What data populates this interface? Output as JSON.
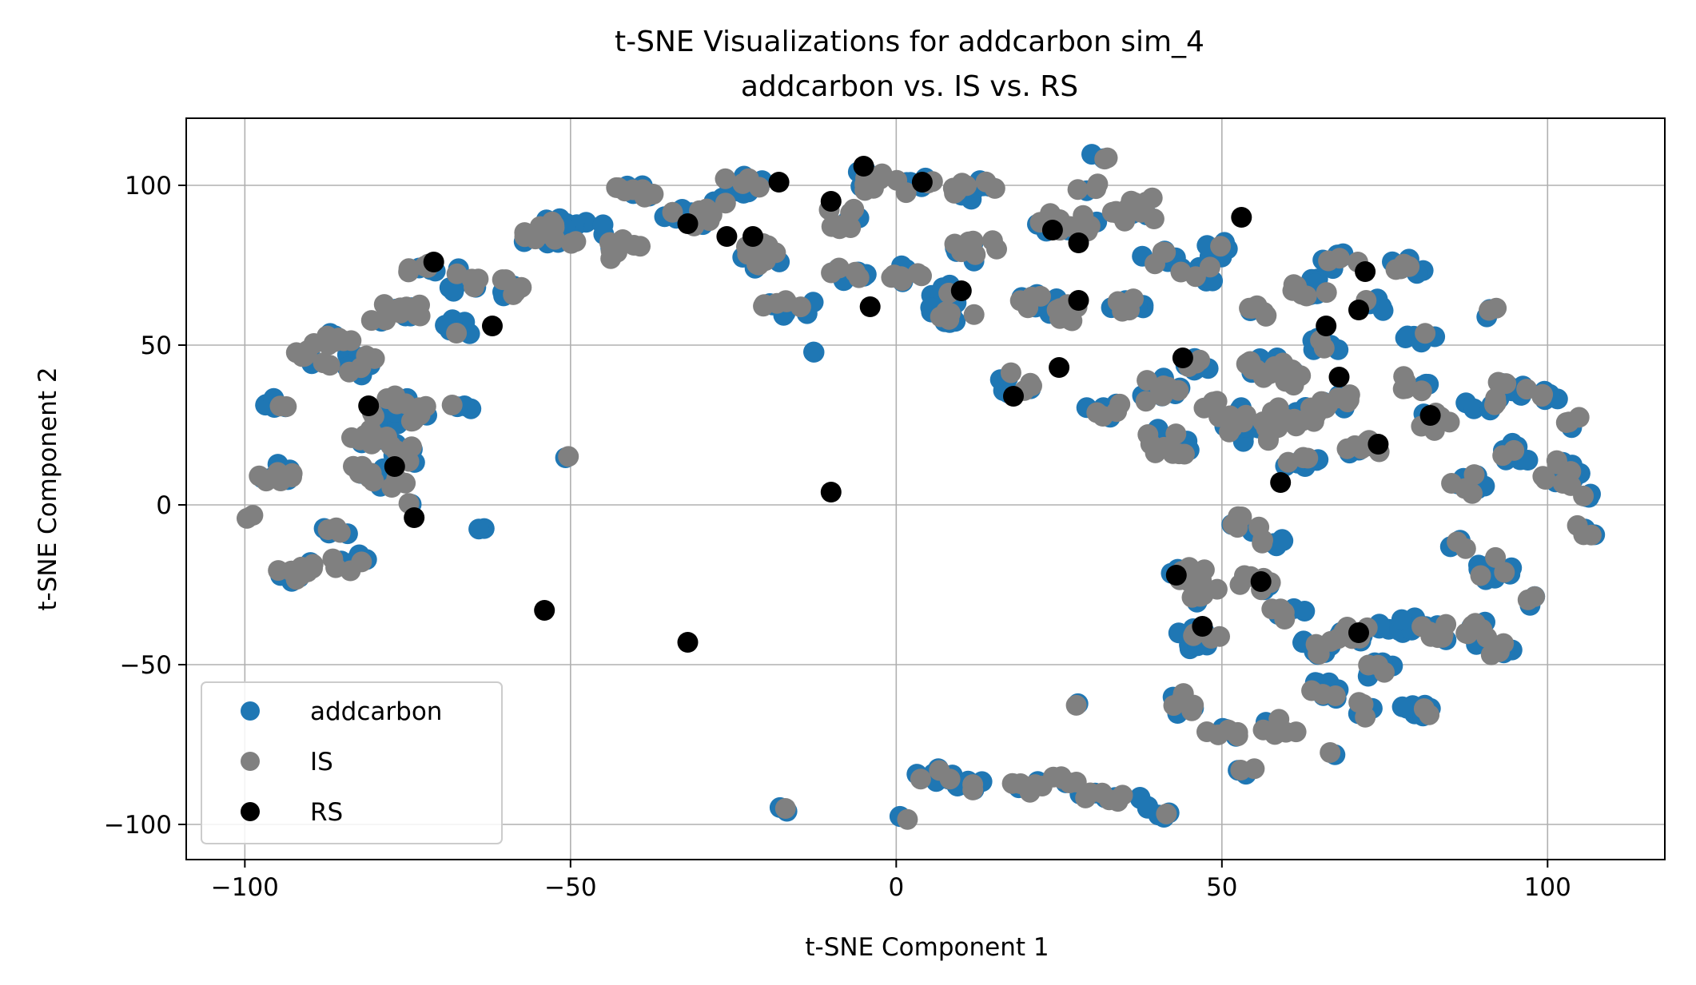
{
  "chart_data": {
    "type": "scatter",
    "title": "t-SNE Visualizations for addcarbon sim_4",
    "subtitle": "addcarbon vs. IS vs. RS",
    "xlabel": "t-SNE Component 1",
    "ylabel": "t-SNE Component 2",
    "xlim": [
      -109,
      118
    ],
    "ylim": [
      -111,
      121
    ],
    "xticks": [
      -100,
      -50,
      0,
      50,
      100
    ],
    "xtick_labels": [
      "−100",
      "−50",
      "0",
      "50",
      "100"
    ],
    "yticks": [
      -100,
      -50,
      0,
      50,
      100
    ],
    "ytick_labels": [
      "−100",
      "−50",
      "0",
      "50",
      "100"
    ],
    "grid": true,
    "legend_position": "lower-left",
    "colors": {
      "addcarbon": "#1f77b4",
      "IS": "#808080",
      "RS": "#000000"
    },
    "clusters": [
      [
        -96,
        10,
        4,
        3,
        14
      ],
      [
        -95,
        32,
        3,
        2,
        10
      ],
      [
        -93,
        -22,
        3,
        3,
        8
      ],
      [
        -90,
        46,
        3,
        3,
        8
      ],
      [
        -87,
        52,
        4,
        2,
        10
      ],
      [
        -85,
        -8,
        3,
        2,
        6
      ],
      [
        -84,
        -18,
        3,
        3,
        8
      ],
      [
        -83,
        44,
        4,
        4,
        14
      ],
      [
        -81,
        22,
        3,
        3,
        10
      ],
      [
        -81,
        10,
        4,
        3,
        10
      ],
      [
        -78,
        8,
        3,
        3,
        8
      ],
      [
        -77,
        30,
        4,
        5,
        16
      ],
      [
        -76,
        16,
        3,
        4,
        10
      ],
      [
        -77,
        60,
        5,
        4,
        18
      ],
      [
        -72,
        28,
        3,
        3,
        8
      ],
      [
        -73,
        74,
        3,
        2,
        8
      ],
      [
        -67,
        70,
        3,
        4,
        10
      ],
      [
        -67,
        56,
        3,
        3,
        8
      ],
      [
        -67,
        30,
        2,
        2,
        4
      ],
      [
        -59,
        68,
        3,
        3,
        10
      ],
      [
        -57,
        84,
        2,
        2,
        4
      ],
      [
        -50,
        86,
        6,
        6,
        24
      ],
      [
        -42,
        80,
        3,
        4,
        10
      ],
      [
        -40,
        98,
        4,
        2,
        12
      ],
      [
        -32,
        90,
        4,
        3,
        12
      ],
      [
        -28,
        94,
        2,
        3,
        6
      ],
      [
        -24,
        100,
        4,
        3,
        12
      ],
      [
        -21,
        78,
        4,
        4,
        14
      ],
      [
        -16,
        62,
        5,
        3,
        14
      ],
      [
        -7,
        72,
        4,
        3,
        10
      ],
      [
        -8,
        90,
        3,
        4,
        10
      ],
      [
        -4,
        102,
        3,
        4,
        10
      ],
      [
        3,
        101,
        3,
        4,
        10
      ],
      [
        1,
        72,
        3,
        3,
        10
      ],
      [
        8,
        66,
        3,
        3,
        8
      ],
      [
        12,
        98,
        4,
        4,
        14
      ],
      [
        12,
        80,
        4,
        4,
        12
      ],
      [
        8,
        60,
        4,
        3,
        12
      ],
      [
        18,
        38,
        3,
        4,
        10
      ],
      [
        22,
        64,
        3,
        3,
        10
      ],
      [
        26,
        88,
        5,
        4,
        18
      ],
      [
        29,
        100,
        2,
        2,
        4
      ],
      [
        31,
        109,
        2,
        1,
        4
      ],
      [
        26,
        60,
        3,
        3,
        10
      ],
      [
        32,
        30,
        3,
        3,
        8
      ],
      [
        36,
        62,
        3,
        3,
        10
      ],
      [
        37,
        92,
        4,
        5,
        14
      ],
      [
        40,
        36,
        4,
        4,
        14
      ],
      [
        40,
        78,
        3,
        3,
        8
      ],
      [
        42,
        20,
        4,
        6,
        16
      ],
      [
        46,
        72,
        3,
        4,
        10
      ],
      [
        50,
        80,
        3,
        3,
        8
      ],
      [
        46,
        44,
        3,
        2,
        8
      ],
      [
        50,
        30,
        3,
        4,
        10
      ],
      [
        53,
        -6,
        3,
        3,
        8
      ],
      [
        54,
        24,
        5,
        5,
        20
      ],
      [
        56,
        44,
        4,
        3,
        12
      ],
      [
        57,
        61,
        3,
        2,
        8
      ],
      [
        58,
        -12,
        2,
        3,
        6
      ],
      [
        61,
        28,
        4,
        4,
        14
      ],
      [
        60,
        40,
        4,
        3,
        10
      ],
      [
        62,
        14,
        3,
        3,
        10
      ],
      [
        64,
        68,
        4,
        3,
        12
      ],
      [
        66,
        50,
        3,
        3,
        8
      ],
      [
        68,
        32,
        4,
        3,
        10
      ],
      [
        68,
        76,
        3,
        3,
        10
      ],
      [
        72,
        18,
        3,
        3,
        10
      ],
      [
        73,
        62,
        2,
        3,
        6
      ],
      [
        78,
        74,
        3,
        3,
        8
      ],
      [
        79,
        38,
        3,
        3,
        8
      ],
      [
        81,
        52,
        3,
        2,
        6
      ],
      [
        82,
        26,
        3,
        3,
        8
      ],
      [
        90,
        32,
        3,
        3,
        10
      ],
      [
        91,
        60,
        2,
        2,
        4
      ],
      [
        94,
        36,
        3,
        3,
        10
      ],
      [
        96,
        16,
        3,
        4,
        10
      ],
      [
        100,
        34,
        2,
        2,
        6
      ],
      [
        102,
        10,
        3,
        4,
        10
      ],
      [
        104,
        26,
        2,
        2,
        4
      ],
      [
        106,
        -8,
        2,
        3,
        6
      ],
      [
        106,
        2,
        1,
        2,
        4
      ],
      [
        88,
        6,
        3,
        4,
        10
      ],
      [
        87,
        -13,
        2,
        2,
        4
      ],
      [
        92,
        -20,
        3,
        4,
        10
      ],
      [
        44,
        -22,
        4,
        3,
        12
      ],
      [
        47,
        -28,
        3,
        3,
        8
      ],
      [
        55,
        -24,
        3,
        3,
        8
      ],
      [
        60,
        -34,
        3,
        3,
        8
      ],
      [
        46,
        -42,
        4,
        4,
        14
      ],
      [
        44,
        -62,
        2,
        4,
        8
      ],
      [
        50,
        -72,
        3,
        3,
        8
      ],
      [
        54,
        -84,
        2,
        2,
        4
      ],
      [
        59,
        -70,
        3,
        3,
        8
      ],
      [
        64,
        -44,
        3,
        3,
        10
      ],
      [
        66,
        -58,
        3,
        3,
        10
      ],
      [
        70,
        -40,
        3,
        3,
        10
      ],
      [
        74,
        -52,
        3,
        3,
        10
      ],
      [
        78,
        -38,
        4,
        3,
        12
      ],
      [
        80,
        -64,
        3,
        3,
        10
      ],
      [
        84,
        -40,
        3,
        3,
        8
      ],
      [
        88,
        -38,
        3,
        3,
        10
      ],
      [
        92,
        -44,
        3,
        3,
        10
      ],
      [
        98,
        -30,
        2,
        2,
        4
      ],
      [
        6,
        -84,
        3,
        3,
        10
      ],
      [
        12,
        -88,
        3,
        2,
        8
      ],
      [
        20,
        -88,
        3,
        2,
        8
      ],
      [
        25,
        -88,
        3,
        3,
        8
      ],
      [
        30,
        -90,
        2,
        2,
        6
      ],
      [
        35,
        -92,
        3,
        2,
        8
      ],
      [
        40,
        -96,
        3,
        2,
        6
      ],
      [
        1,
        -98,
        1,
        1,
        3
      ],
      [
        -17,
        -95,
        1,
        1,
        3
      ],
      [
        -64,
        -8,
        1,
        1,
        2
      ],
      [
        -51,
        15,
        1,
        1,
        2
      ],
      [
        -13,
        48,
        1,
        1,
        2
      ],
      [
        -99,
        -4,
        1,
        1,
        2
      ],
      [
        -75,
        0,
        1,
        1,
        2
      ],
      [
        -90,
        -20,
        2,
        2,
        4
      ],
      [
        28,
        -62,
        1,
        1,
        2
      ],
      [
        67,
        -78,
        1,
        1,
        2
      ],
      [
        103,
        8,
        2,
        3,
        6
      ],
      [
        72,
        -64,
        3,
        3,
        6
      ]
    ],
    "series": [
      {
        "name": "addcarbon",
        "color": "#1f77b4"
      },
      {
        "name": "IS",
        "color": "#808080"
      },
      {
        "name": "RS",
        "color": "#000000",
        "points": [
          [
            -71,
            76
          ],
          [
            -81,
            31
          ],
          [
            -77,
            12
          ],
          [
            -74,
            -4
          ],
          [
            -62,
            56
          ],
          [
            -32,
            88
          ],
          [
            -26,
            84
          ],
          [
            -22,
            84
          ],
          [
            -18,
            101
          ],
          [
            -10,
            95
          ],
          [
            -5,
            106
          ],
          [
            4,
            101
          ],
          [
            -4,
            62
          ],
          [
            10,
            67
          ],
          [
            18,
            34
          ],
          [
            24,
            86
          ],
          [
            25,
            43
          ],
          [
            28,
            82
          ],
          [
            28,
            64
          ],
          [
            44,
            46
          ],
          [
            53,
            90
          ],
          [
            59,
            7
          ],
          [
            66,
            56
          ],
          [
            68,
            40
          ],
          [
            71,
            61
          ],
          [
            72,
            73
          ],
          [
            74,
            19
          ],
          [
            82,
            28
          ],
          [
            -10,
            4
          ],
          [
            -54,
            -33
          ],
          [
            -32,
            -43
          ],
          [
            43,
            -22
          ],
          [
            56,
            -24
          ],
          [
            47,
            -38
          ],
          [
            71,
            -40
          ]
        ]
      }
    ]
  }
}
